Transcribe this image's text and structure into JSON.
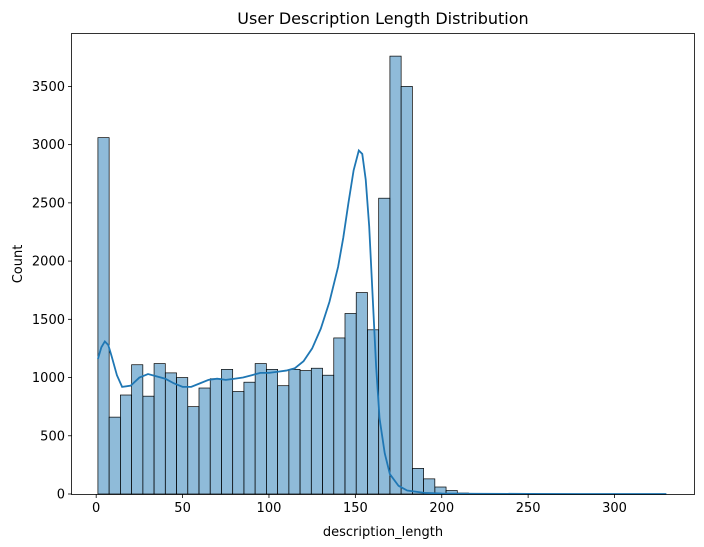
{
  "chart_data": {
    "type": "bar",
    "title": "User Description Length Distribution",
    "xlabel": "description_length",
    "ylabel": "Count",
    "xlim": [
      -14,
      346
    ],
    "ylim": [
      0,
      3950
    ],
    "x_ticks": [
      0,
      50,
      100,
      150,
      200,
      250,
      300
    ],
    "y_ticks": [
      0,
      500,
      1000,
      1500,
      2000,
      2500,
      3000,
      3500
    ],
    "grid": false,
    "bin_width": 6.5,
    "bins_start": 1,
    "bar_color": "#1f77b4",
    "bar_fill_opacity": 0.5,
    "bar_edge_color": "#000000",
    "kde_color": "#1f77b4",
    "values": [
      3060,
      660,
      850,
      1110,
      840,
      1120,
      1040,
      1000,
      750,
      910,
      990,
      1070,
      880,
      960,
      1120,
      1070,
      930,
      1070,
      1060,
      1080,
      1020,
      1340,
      1550,
      1730,
      1410,
      2540,
      3760,
      3500,
      220,
      130,
      60,
      30,
      8,
      5,
      3,
      2,
      2,
      1,
      1,
      1,
      1,
      0,
      0,
      0,
      0,
      0,
      0,
      0,
      0,
      0,
      0
    ],
    "kde": {
      "x": [
        1,
        3,
        5,
        7,
        9,
        12,
        15,
        20,
        25,
        30,
        35,
        40,
        45,
        50,
        55,
        60,
        65,
        70,
        75,
        80,
        85,
        90,
        95,
        100,
        105,
        110,
        115,
        120,
        125,
        130,
        135,
        140,
        143,
        146,
        149,
        152,
        154,
        156,
        158,
        160,
        162,
        164,
        167,
        170,
        175,
        180,
        190,
        200,
        220,
        250,
        280,
        300,
        330
      ],
      "y": [
        1160,
        1260,
        1310,
        1280,
        1180,
        1020,
        920,
        930,
        1000,
        1030,
        1010,
        990,
        950,
        920,
        920,
        950,
        980,
        990,
        980,
        990,
        1000,
        1020,
        1040,
        1040,
        1050,
        1060,
        1080,
        1140,
        1250,
        1420,
        1650,
        1950,
        2200,
        2500,
        2780,
        2950,
        2920,
        2700,
        2300,
        1700,
        1100,
        650,
        350,
        170,
        70,
        30,
        10,
        4,
        2,
        1,
        0,
        0,
        0
      ]
    }
  }
}
